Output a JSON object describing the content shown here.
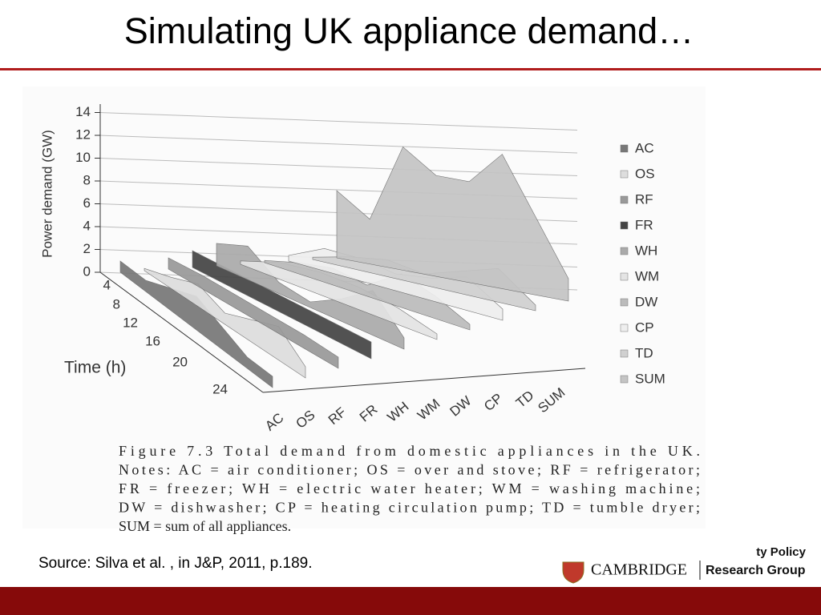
{
  "title": "Simulating UK appliance demand…",
  "figure": {
    "y_axis_label": "Power demand (GW)",
    "y_ticks": [
      "0",
      "2",
      "4",
      "6",
      "8",
      "10",
      "12",
      "14"
    ],
    "time_axis_label": "Time (h)",
    "time_ticks": [
      "4",
      "8",
      "12",
      "16",
      "20",
      "24"
    ],
    "appliances": [
      "AC",
      "OS",
      "RF",
      "FR",
      "WH",
      "WM",
      "DW",
      "CP",
      "TD",
      "SUM"
    ],
    "caption": [
      "Figure 7.3 Total demand from domestic appliances in the UK.",
      "Notes: AC = air conditioner; OS = over and stove; RF = refrigerator;",
      "FR = freezer; WH = electric water heater; WM = washing machine;",
      "DW = dishwasher; CP = heating circulation pump; TD = tumble dryer;",
      "SUM = sum of all appliances."
    ]
  },
  "source": "Source: Silva et al. , in J&P, 2011, p.189.",
  "logo": {
    "partial": "ty Policy",
    "university": "CAMBRIDGE",
    "group": "Research Group"
  }
}
